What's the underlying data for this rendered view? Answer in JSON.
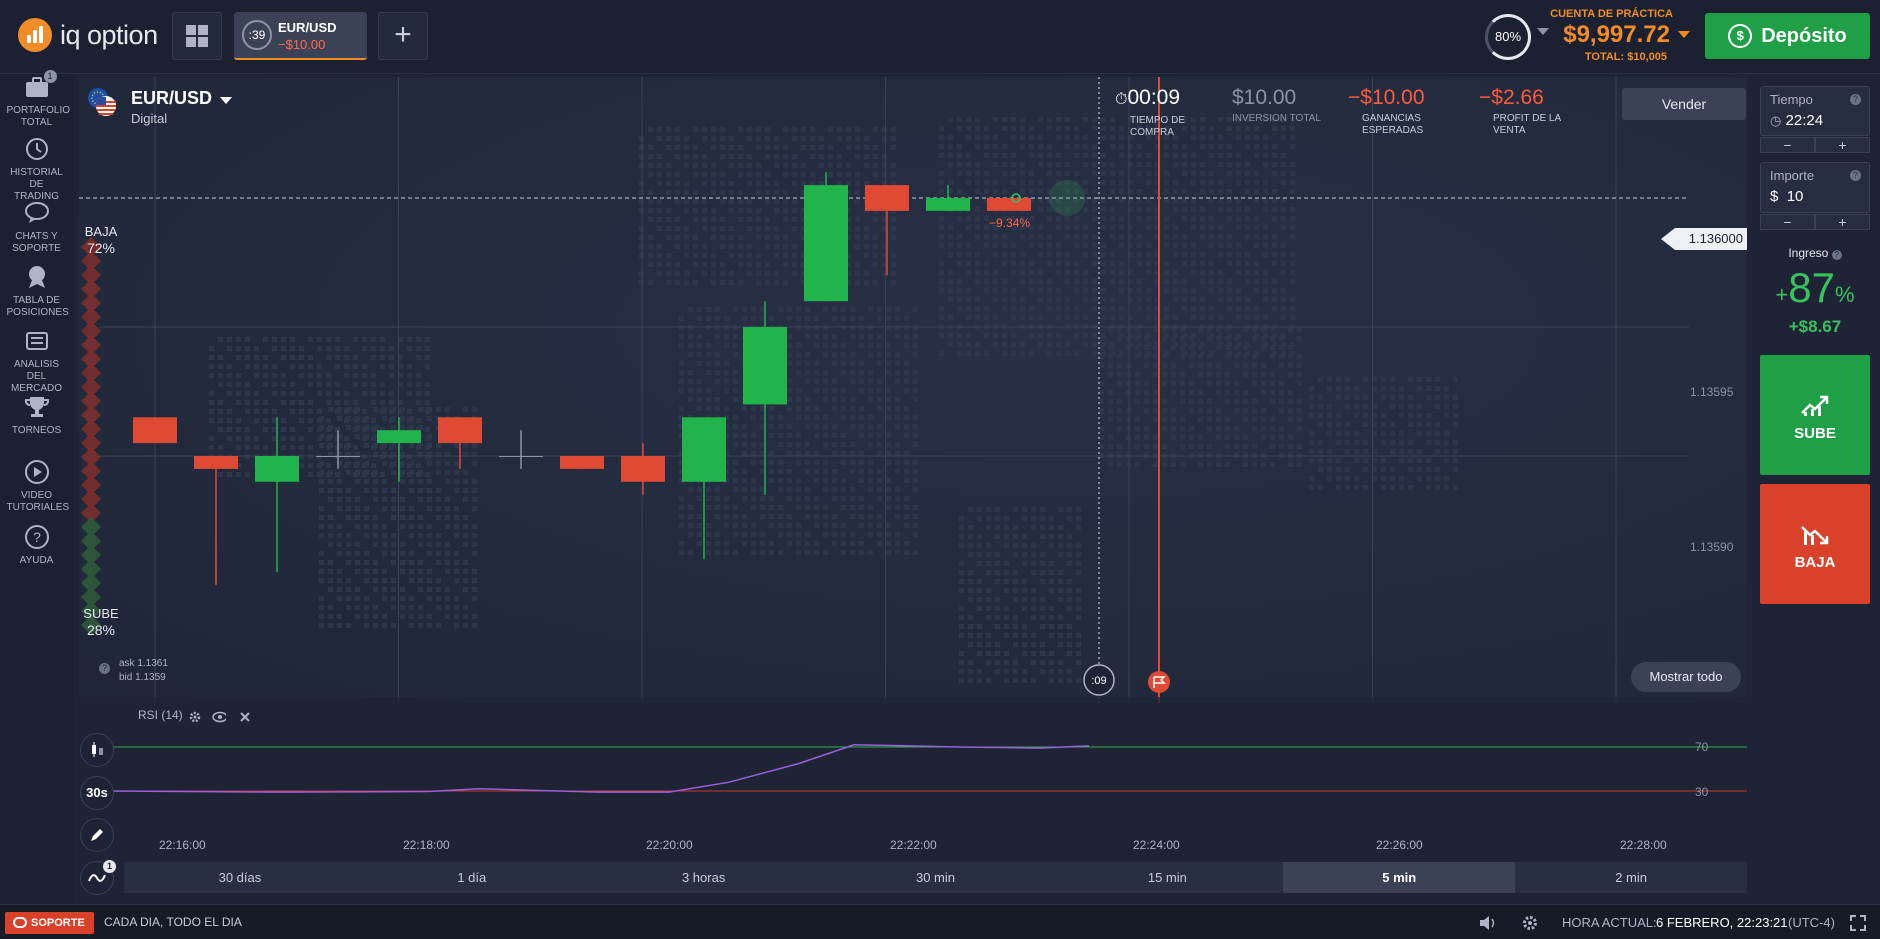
{
  "brand": {
    "name": "iq option",
    "color": "#f28c28"
  },
  "toolbar": {
    "grid_icon": "grid-icon",
    "asset_tab": {
      "timer": ":39",
      "name": "EUR/USD",
      "pl": "−$10.00"
    },
    "add_tab": "+"
  },
  "account": {
    "payout_ring": "80%",
    "label": "CUENTA DE PRÁCTICA",
    "balance": "$9,997.72",
    "total": "TOTAL: $10,005",
    "deposit_label": "Depósito"
  },
  "sidebar": {
    "items": [
      {
        "label": "PORTAFOLIO TOTAL",
        "icon": "briefcase-icon",
        "badge": "1"
      },
      {
        "label": "HISTORIAL DE TRADING",
        "icon": "history-icon"
      },
      {
        "label": "CHATS Y SOPORTE",
        "icon": "chat-icon"
      },
      {
        "label": "TABLA DE POSICIONES",
        "icon": "medal-icon"
      },
      {
        "label": "ANALISIS DEL MERCADO",
        "icon": "news-icon"
      },
      {
        "label": "TORNEOS",
        "icon": "trophy-icon"
      },
      {
        "label": "VIDEO TUTORIALES",
        "icon": "play-icon"
      },
      {
        "label": "AYUDA",
        "icon": "help-icon"
      }
    ]
  },
  "asset": {
    "name": "EUR/USD",
    "type": "Digital"
  },
  "sentiment": {
    "baja_label": "BAJA",
    "baja_pct": "72%",
    "sube_label": "SUBE",
    "sube_pct": "28%"
  },
  "quote": {
    "ask": "ask 1.1361",
    "bid": "bid 1.1359"
  },
  "trade_stats": {
    "time": {
      "value": "00:09",
      "label": "TIEMPO DE COMPRA"
    },
    "investment": {
      "value": "$10.00",
      "label": "INVERSION TOTAL"
    },
    "expected": {
      "value": "−$10.00",
      "label": "GANANCIAS ESPERADAS"
    },
    "sell_profit": {
      "value": "−$2.66",
      "label": "PROFIT DE LA VENTA"
    }
  },
  "buttons": {
    "vender": "Vender",
    "mostrar_todo": "Mostrar todo"
  },
  "chart_data": {
    "type": "candlestick",
    "current_price": "1.136000",
    "trade_change": "−9.34%",
    "y_ticks": [
      {
        "value": 1.13595,
        "label": "1.13595"
      },
      {
        "value": 1.1359,
        "label": "1.13590"
      }
    ],
    "x_ticks": [
      "22:16:00",
      "22:18:00",
      "22:20:00",
      "22:22:00",
      "22:24:00",
      "22:26:00",
      "22:28:00"
    ],
    "purchase_timer": ":09",
    "candles": [
      {
        "o": 1.135915,
        "h": 1.135915,
        "l": 1.135905,
        "c": 1.135905
      },
      {
        "o": 1.1359,
        "h": 1.1359,
        "l": 1.13585,
        "c": 1.135895
      },
      {
        "o": 1.13589,
        "h": 1.135915,
        "l": 1.135855,
        "c": 1.1359
      },
      {
        "o": 1.1359,
        "h": 1.13591,
        "l": 1.135895,
        "c": 1.1359
      },
      {
        "o": 1.135905,
        "h": 1.135915,
        "l": 1.13589,
        "c": 1.13591
      },
      {
        "o": 1.135915,
        "h": 1.135915,
        "l": 1.135895,
        "c": 1.135905
      },
      {
        "o": 1.1359,
        "h": 1.13591,
        "l": 1.135895,
        "c": 1.1359
      },
      {
        "o": 1.1359,
        "h": 1.1359,
        "l": 1.135895,
        "c": 1.135895
      },
      {
        "o": 1.1359,
        "h": 1.135905,
        "l": 1.135885,
        "c": 1.13589
      },
      {
        "o": 1.13589,
        "h": 1.135915,
        "l": 1.13586,
        "c": 1.135915
      },
      {
        "o": 1.13592,
        "h": 1.13596,
        "l": 1.135885,
        "c": 1.13595
      },
      {
        "o": 1.13596,
        "h": 1.13601,
        "l": 1.13596,
        "c": 1.136005
      },
      {
        "o": 1.136005,
        "h": 1.136005,
        "l": 1.13597,
        "c": 1.135995
      },
      {
        "o": 1.135995,
        "h": 1.136005,
        "l": 1.135995,
        "c": 1.136
      },
      {
        "o": 1.136,
        "h": 1.136,
        "l": 1.135995,
        "c": 1.135995
      }
    ]
  },
  "rsi": {
    "label": "RSI (14)",
    "levels": [
      70,
      30
    ],
    "level_labels": [
      "70",
      "30"
    ]
  },
  "side_tools": {
    "interval": "30s",
    "indicator_badge": "1"
  },
  "timeframes": [
    "30 días",
    "1 día",
    "3 horas",
    "30 min",
    "15 min",
    "5 min",
    "2 min"
  ],
  "timeframe_active": "5 min",
  "order_panel": {
    "time_label": "Tiempo",
    "time_value": "22:24",
    "amount_label": "Importe",
    "amount_value": "10",
    "currency": "$",
    "minus": "−",
    "plus": "+",
    "income_label": "Ingreso",
    "income_pct": "87",
    "income_pct_sign": "+",
    "income_pct_unit": "%",
    "income_amount": "+$8.67",
    "up_label": "SUBE",
    "down_label": "BAJA",
    "up_color": "#1fa046",
    "down_color": "#d9412a"
  },
  "footer": {
    "support_label": "SOPORTE",
    "promo": "CADA DIA, TODO EL DIA",
    "clock_label": "HORA ACTUAL:",
    "clock_value": "6 FEBRERO, 22:23:21",
    "timezone": "(UTC-4)"
  }
}
